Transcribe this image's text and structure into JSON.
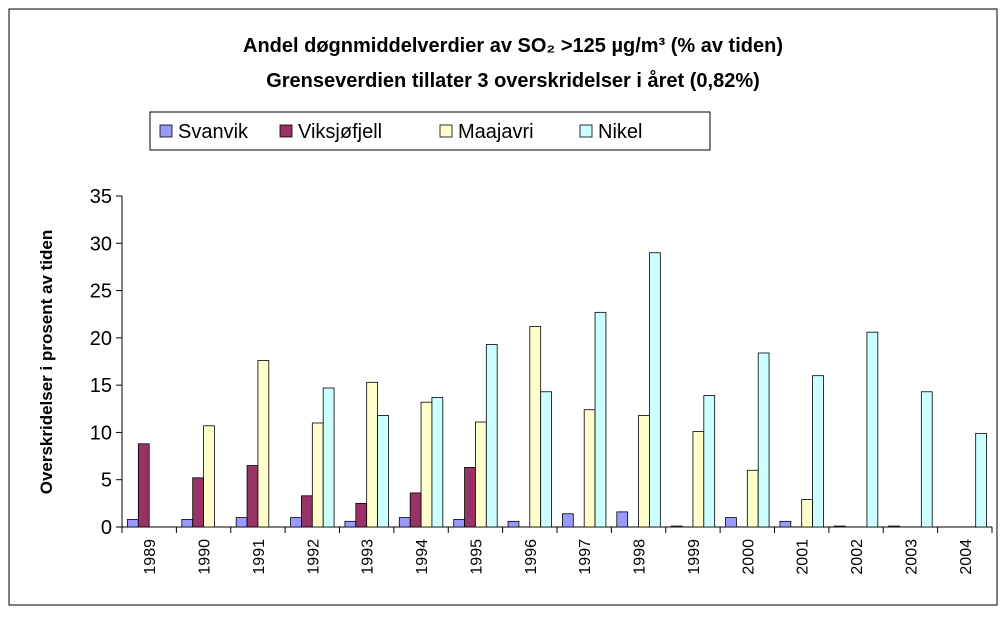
{
  "chart_data": {
    "type": "bar",
    "title": "Andel døgnmiddelverdier av SO₂ >125 µg/m³  (% av tiden)",
    "subtitle": "Grenseverdien tillater 3 overskridelser i året (0,82%)",
    "y_label": "Overskridelser i prosent av tiden",
    "categories": [
      "1989",
      "1990",
      "1991",
      "1992",
      "1993",
      "1994",
      "1995",
      "1996",
      "1997",
      "1998",
      "1999",
      "2000",
      "2001",
      "2002",
      "2003",
      "2004"
    ],
    "series": [
      {
        "name": "Svanvik",
        "color": "#9999ff",
        "values": [
          0.8,
          0.8,
          1.0,
          1.0,
          0.6,
          1.0,
          0.8,
          0.6,
          1.4,
          1.6,
          0.1,
          1.0,
          0.6,
          0.1,
          0.1,
          null
        ]
      },
      {
        "name": "Viksjøfjell",
        "color": "#993366",
        "values": [
          8.8,
          5.2,
          6.5,
          3.3,
          2.5,
          3.6,
          6.3,
          null,
          null,
          null,
          null,
          null,
          null,
          null,
          null,
          null
        ]
      },
      {
        "name": "Maajavri",
        "color": "#ffffcc",
        "values": [
          null,
          10.7,
          17.6,
          11.0,
          15.3,
          13.2,
          11.1,
          21.2,
          12.4,
          11.8,
          10.1,
          6.0,
          2.9,
          null,
          null,
          null
        ]
      },
      {
        "name": "Nikel",
        "color": "#ccffff",
        "values": [
          null,
          null,
          null,
          14.7,
          11.8,
          13.7,
          19.3,
          14.3,
          22.7,
          29.0,
          13.9,
          18.4,
          16.0,
          20.6,
          14.3,
          9.9
        ]
      }
    ],
    "ylim": [
      0,
      35
    ],
    "yticks": [
      0,
      5,
      10,
      15,
      20,
      25,
      30,
      35
    ],
    "grid": false,
    "legend": "top"
  }
}
